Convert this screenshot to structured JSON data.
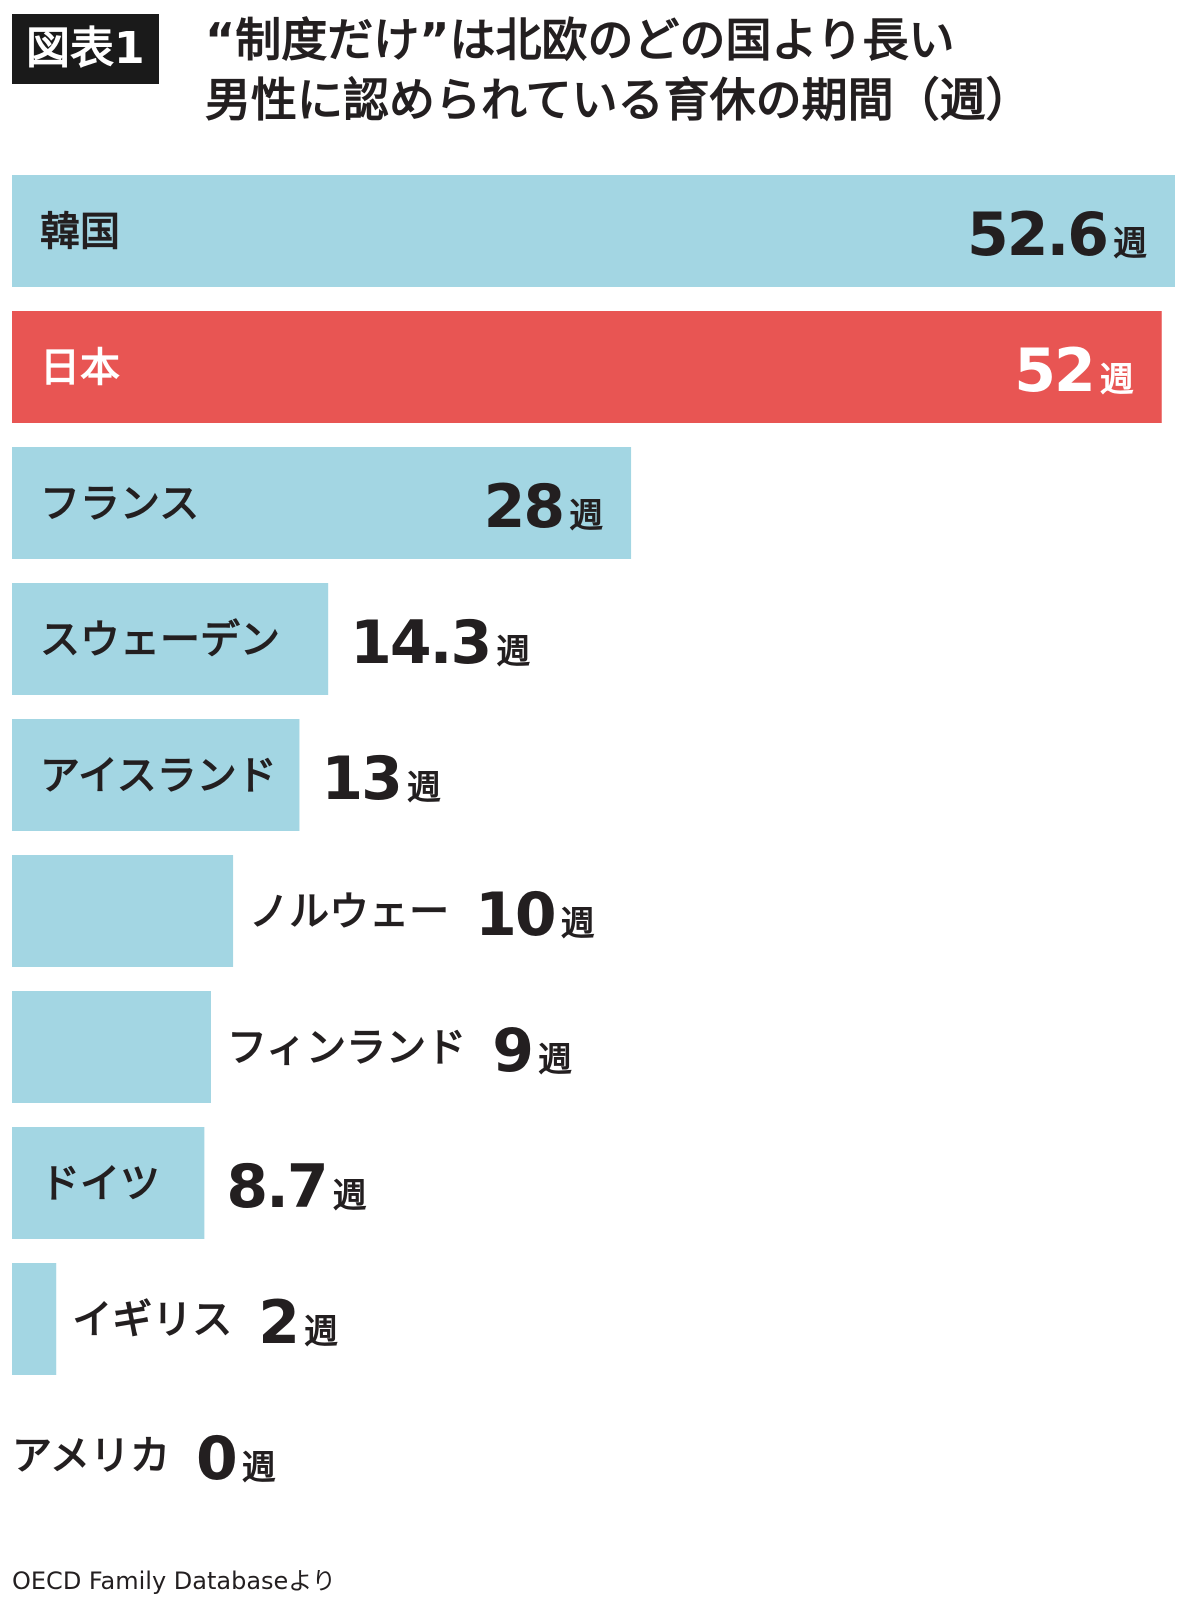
{
  "badge": "図表1",
  "title_lines": [
    "“制度だけ”は北欧のどの国より長い",
    "男性に認められている育休の期間（週）"
  ],
  "source": "OECD Family Databaseより",
  "colors": {
    "default_bar": "#a3d6e3",
    "highlight_bar": "#e85553",
    "text": "#231f20",
    "highlight_text": "#ffffff"
  },
  "chart_data": {
    "type": "bar",
    "orientation": "horizontal",
    "unit": "週",
    "categories": [
      "韓国",
      "日本",
      "フランス",
      "スウェーデン",
      "アイスランド",
      "ノルウェー",
      "フィンランド",
      "ドイツ",
      "イギリス",
      "アメリカ"
    ],
    "values": [
      52.6,
      52,
      28,
      14.3,
      13,
      10,
      9,
      8.7,
      2,
      0
    ],
    "value_labels": [
      "52.6",
      "52",
      "28",
      "14.3",
      "13",
      "10",
      "9",
      "8.7",
      "2",
      "0"
    ],
    "highlight": [
      "日本"
    ],
    "xlim": [
      0,
      52.6
    ],
    "grid": false,
    "legend": "none"
  }
}
